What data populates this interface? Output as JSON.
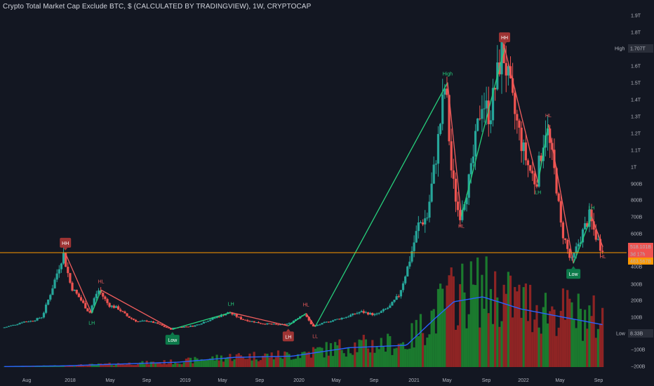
{
  "header": {
    "title": "Crypto Total Market Cap Exclude BTC, $ (CALCULATED BY TRADINGVIEW), 1W, CRYPTOCAP"
  },
  "colors": {
    "background": "#131722",
    "up": "#26a69a",
    "down": "#ef5350",
    "vol_up": "#1b7a2e",
    "vol_down": "#8e2424",
    "zigzag_up": "#26d07c",
    "zigzag_down": "#f05d5d",
    "ma": "#2962ff",
    "hline": "#ff9800",
    "hh_badge": "#9e3434",
    "low_badge": "#0c7a4a"
  },
  "right_axis": {
    "ticks": [
      "1.9T",
      "1.8T",
      "1.7T",
      "1.6T",
      "1.5T",
      "1.4T",
      "1.3T",
      "1.2T",
      "1.1T",
      "1T",
      "900B",
      "800B",
      "700B",
      "600B",
      "400B",
      "300B",
      "200B",
      "100B",
      "0",
      "−100B",
      "−200B"
    ],
    "high_label": "High",
    "high_value": "1.707T",
    "low_label": "Low",
    "low_value": "8.33B",
    "price_badge": "518.101B",
    "countdown_badge": "3d 17h",
    "line_badge": "483.567B"
  },
  "x_axis": {
    "ticks": [
      "Aug",
      "2018",
      "May",
      "Sep",
      "2019",
      "May",
      "Sep",
      "2020",
      "May",
      "Sep",
      "2021",
      "May",
      "Sep",
      "2022",
      "May",
      "Sep"
    ]
  },
  "annotations": [
    {
      "text": "HH",
      "kind": "badge-red"
    },
    {
      "text": "LH",
      "kind": "green"
    },
    {
      "text": "HL",
      "kind": "red"
    },
    {
      "text": "Low",
      "kind": "badge-green"
    },
    {
      "text": "LH",
      "kind": "green"
    },
    {
      "text": "LH",
      "kind": "badge-red"
    },
    {
      "text": "HL",
      "kind": "red"
    },
    {
      "text": "LL",
      "kind": "red"
    },
    {
      "text": "High",
      "kind": "green"
    },
    {
      "text": "HL",
      "kind": "red"
    },
    {
      "text": "HH",
      "kind": "badge-red"
    },
    {
      "text": "LH",
      "kind": "green"
    },
    {
      "text": "HL",
      "kind": "red"
    },
    {
      "text": "Low",
      "kind": "badge-green"
    },
    {
      "text": "LH",
      "kind": "green"
    },
    {
      "text": "HL",
      "kind": "red"
    }
  ],
  "chart_data": {
    "type": "candlestick",
    "title": "Crypto Total Market Cap Exclude BTC, $ (CALCULATED BY TRADINGVIEW), 1W, CRYPTOCAP",
    "y_unit": "USD",
    "ylim": [
      -230000000000,
      1950000000000
    ],
    "x_range": [
      "2017-07-01",
      "2022-10-01"
    ],
    "horizontal_line": 483567000000,
    "last_close": 518101000000,
    "series_high": 1707000000000,
    "price_path": [
      [
        "2017-07-01",
        35
      ],
      [
        "2017-08-01",
        50
      ],
      [
        "2017-09-01",
        70
      ],
      [
        "2017-10-01",
        75
      ],
      [
        "2017-11-01",
        100
      ],
      [
        "2017-12-01",
        260
      ],
      [
        "2018-01-07",
        480
      ],
      [
        "2018-02-01",
        280
      ],
      [
        "2018-03-01",
        210
      ],
      [
        "2018-04-01",
        120
      ],
      [
        "2018-04-20",
        230
      ],
      [
        "2018-05-01",
        260
      ],
      [
        "2018-06-01",
        170
      ],
      [
        "2018-07-01",
        150
      ],
      [
        "2018-08-01",
        100
      ],
      [
        "2018-09-01",
        70
      ],
      [
        "2018-10-01",
        75
      ],
      [
        "2018-11-01",
        60
      ],
      [
        "2018-12-15",
        25
      ],
      [
        "2019-01-01",
        35
      ],
      [
        "2019-03-01",
        45
      ],
      [
        "2019-05-01",
        90
      ],
      [
        "2019-06-20",
        125
      ],
      [
        "2019-08-01",
        85
      ],
      [
        "2019-10-01",
        60
      ],
      [
        "2019-12-01",
        50
      ],
      [
        "2020-01-01",
        60
      ],
      [
        "2020-02-15",
        120
      ],
      [
        "2020-03-15",
        40
      ],
      [
        "2020-05-01",
        70
      ],
      [
        "2020-07-01",
        100
      ],
      [
        "2020-08-15",
        130
      ],
      [
        "2020-10-01",
        110
      ],
      [
        "2020-11-15",
        160
      ],
      [
        "2020-12-15",
        230
      ],
      [
        "2021-01-15",
        420
      ],
      [
        "2021-02-15",
        650
      ],
      [
        "2021-03-15",
        700
      ],
      [
        "2021-04-15",
        1100
      ],
      [
        "2021-05-12",
        1500
      ],
      [
        "2021-06-01",
        950
      ],
      [
        "2021-06-25",
        700
      ],
      [
        "2021-08-01",
        950
      ],
      [
        "2021-09-05",
        1400
      ],
      [
        "2021-10-01",
        1300
      ],
      [
        "2021-11-10",
        1707
      ],
      [
        "2021-12-15",
        1350
      ],
      [
        "2022-01-15",
        1100
      ],
      [
        "2022-02-01",
        1000
      ],
      [
        "2022-02-25",
        900
      ],
      [
        "2022-03-30",
        1250
      ],
      [
        "2022-05-01",
        900
      ],
      [
        "2022-05-15",
        650
      ],
      [
        "2022-06-18",
        420
      ],
      [
        "2022-07-15",
        560
      ],
      [
        "2022-08-15",
        700
      ],
      [
        "2022-09-01",
        600
      ],
      [
        "2022-09-20",
        518
      ]
    ],
    "price_path_unit": "billion USD",
    "zigzag": [
      [
        "2018-01-07",
        480,
        "HH"
      ],
      [
        "2018-04-01",
        120,
        "HL"
      ],
      [
        "2018-05-01",
        260,
        "LH"
      ],
      [
        "2018-12-15",
        25,
        "Low"
      ],
      [
        "2019-06-20",
        125,
        "LH"
      ],
      [
        "2019-12-20",
        45,
        "HL"
      ],
      [
        "2020-02-15",
        120,
        "LH"
      ],
      [
        "2020-03-15",
        40,
        "LL"
      ],
      [
        "2021-05-12",
        1500,
        "High"
      ],
      [
        "2021-06-25",
        700,
        "HL"
      ],
      [
        "2021-11-10",
        1707,
        "HH"
      ],
      [
        "2022-02-25",
        900,
        "HL"
      ],
      [
        "2022-03-30",
        1250,
        "LH"
      ],
      [
        "2022-06-18",
        420,
        "Low"
      ],
      [
        "2022-08-15",
        700,
        "LH"
      ],
      [
        "2022-09-20",
        518,
        "HL"
      ]
    ],
    "volume_ma_path": [
      [
        "2017-07-01",
        2
      ],
      [
        "2018-01-01",
        5
      ],
      [
        "2019-01-01",
        20
      ],
      [
        "2019-07-01",
        40
      ],
      [
        "2020-01-01",
        45
      ],
      [
        "2020-07-01",
        80
      ],
      [
        "2021-01-01",
        90
      ],
      [
        "2021-04-01",
        200
      ],
      [
        "2021-06-01",
        270
      ],
      [
        "2021-09-01",
        290
      ],
      [
        "2022-01-01",
        240
      ],
      [
        "2022-05-01",
        210
      ],
      [
        "2022-09-20",
        175
      ]
    ],
    "volume_ma_unit": "billion USD",
    "right_ticks": [
      1900,
      1800,
      1700,
      1600,
      1500,
      1400,
      1300,
      1200,
      1100,
      1000,
      900,
      800,
      700,
      600,
      400,
      300,
      200,
      100,
      0,
      -100,
      -200
    ],
    "x_ticks": [
      "Aug",
      "2018",
      "May",
      "Sep",
      "2019",
      "May",
      "Sep",
      "2020",
      "May",
      "Sep",
      "2021",
      "May",
      "Sep",
      "2022",
      "May",
      "Sep"
    ]
  }
}
